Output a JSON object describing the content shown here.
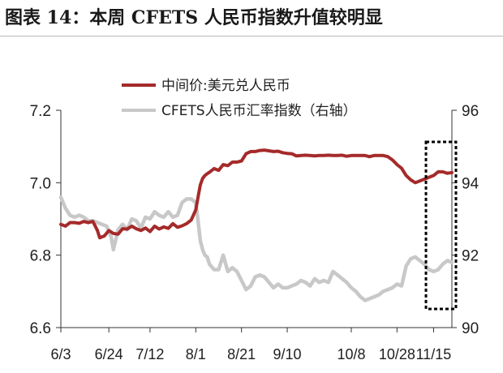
{
  "title": "图表 14：本周 CFETS 人民币指数升值较明显",
  "chart_data": {
    "type": "line",
    "x_tick_labels": [
      "6/3",
      "6/24",
      "7/12",
      "8/1",
      "8/21",
      "9/10",
      "10/8",
      "10/28",
      "11/15"
    ],
    "x_range_days": [
      0,
      171
    ],
    "x_tick_days": [
      0,
      21,
      39,
      59,
      79,
      99,
      127,
      147,
      163
    ],
    "left_axis": {
      "ylim": [
        6.6,
        7.2
      ],
      "ticks": [
        "6.6",
        "6.8",
        "7.0",
        "7.2"
      ]
    },
    "right_axis": {
      "ylim": [
        90,
        96
      ],
      "ticks": [
        "90",
        "92",
        "94",
        "96"
      ]
    },
    "legend_position": "top-center",
    "grid": false,
    "series": [
      {
        "name": "中间价:美元兑人民币",
        "axis": "left",
        "color": "#a52a2a",
        "x": [
          0,
          2,
          4,
          6,
          8,
          10,
          12,
          14,
          16,
          17,
          19,
          21,
          23,
          25,
          27,
          29,
          31,
          33,
          35,
          37,
          39,
          41,
          43,
          45,
          47,
          49,
          51,
          53,
          55,
          57,
          59,
          60,
          61,
          62,
          63,
          64,
          65,
          67,
          69,
          71,
          73,
          75,
          77,
          79,
          81,
          83,
          85,
          87,
          89,
          91,
          93,
          95,
          97,
          99,
          101,
          103,
          105,
          107,
          109,
          111,
          113,
          115,
          117,
          119,
          121,
          123,
          125,
          127,
          129,
          131,
          133,
          135,
          137,
          139,
          141,
          143,
          145,
          147,
          149,
          151,
          153,
          155,
          157,
          159,
          161,
          163,
          165,
          167,
          169,
          171
        ],
        "y": [
          6.885,
          6.88,
          6.89,
          6.89,
          6.888,
          6.893,
          6.89,
          6.893,
          6.868,
          6.848,
          6.853,
          6.868,
          6.86,
          6.858,
          6.873,
          6.872,
          6.88,
          6.873,
          6.868,
          6.875,
          6.865,
          6.88,
          6.872,
          6.878,
          6.874,
          6.887,
          6.877,
          6.881,
          6.887,
          6.897,
          6.925,
          6.96,
          6.994,
          7.012,
          7.02,
          7.025,
          7.029,
          7.039,
          7.034,
          7.05,
          7.047,
          7.057,
          7.057,
          7.06,
          7.08,
          7.086,
          7.086,
          7.089,
          7.09,
          7.088,
          7.086,
          7.087,
          7.083,
          7.081,
          7.08,
          7.074,
          7.075,
          7.076,
          7.075,
          7.074,
          7.075,
          7.075,
          7.076,
          7.075,
          7.075,
          7.076,
          7.073,
          7.075,
          7.075,
          7.075,
          7.075,
          7.072,
          7.075,
          7.075,
          7.075,
          7.072,
          7.063,
          7.05,
          7.04,
          7.02,
          7.008,
          7.0,
          7.005,
          7.01,
          7.015,
          7.02,
          7.03,
          7.03,
          7.026,
          7.028
        ]
      },
      {
        "name": "CFETS人民币汇率指数（右轴）",
        "axis": "right",
        "color": "#c8c8c8",
        "x": [
          0,
          2,
          4,
          6,
          8,
          10,
          12,
          14,
          16,
          18,
          20,
          22,
          23,
          25,
          27,
          29,
          31,
          33,
          35,
          37,
          39,
          41,
          43,
          45,
          47,
          49,
          51,
          53,
          55,
          57,
          59,
          60,
          61,
          62,
          63,
          64,
          65,
          67,
          69,
          71,
          73,
          75,
          77,
          79,
          81,
          83,
          85,
          87,
          89,
          91,
          93,
          95,
          97,
          99,
          101,
          103,
          105,
          107,
          109,
          111,
          113,
          115,
          117,
          119,
          121,
          123,
          125,
          127,
          129,
          131,
          133,
          135,
          137,
          139,
          141,
          143,
          145,
          147,
          149,
          151,
          153,
          155,
          157,
          159,
          161,
          163,
          165,
          167,
          169,
          171
        ],
        "y": [
          93.6,
          93.3,
          93.1,
          93.05,
          93.1,
          93.05,
          92.95,
          92.95,
          92.9,
          92.85,
          92.8,
          92.5,
          92.15,
          92.7,
          92.85,
          92.7,
          93.0,
          92.95,
          92.75,
          93.05,
          93.0,
          93.2,
          93.1,
          93.05,
          93.2,
          93.05,
          93.1,
          93.45,
          93.55,
          93.55,
          93.45,
          92.95,
          92.4,
          92.15,
          92.0,
          91.95,
          91.75,
          91.6,
          91.6,
          92.0,
          91.55,
          91.65,
          91.55,
          91.3,
          91.05,
          91.15,
          91.4,
          91.45,
          91.4,
          91.25,
          91.1,
          91.2,
          91.1,
          91.1,
          91.15,
          91.2,
          91.3,
          91.25,
          91.15,
          91.35,
          91.25,
          91.3,
          91.25,
          91.55,
          91.45,
          91.35,
          91.25,
          91.1,
          91.0,
          90.85,
          90.75,
          90.8,
          90.85,
          90.9,
          91.0,
          91.05,
          91.1,
          91.2,
          91.15,
          91.7,
          91.9,
          91.95,
          91.85,
          91.75,
          91.6,
          91.55,
          91.6,
          91.75,
          91.85,
          91.8
        ]
      }
    ],
    "annotation": {
      "type": "dashed-box",
      "color": "#000000",
      "x_range_days": [
        162.5,
        171
      ]
    }
  }
}
